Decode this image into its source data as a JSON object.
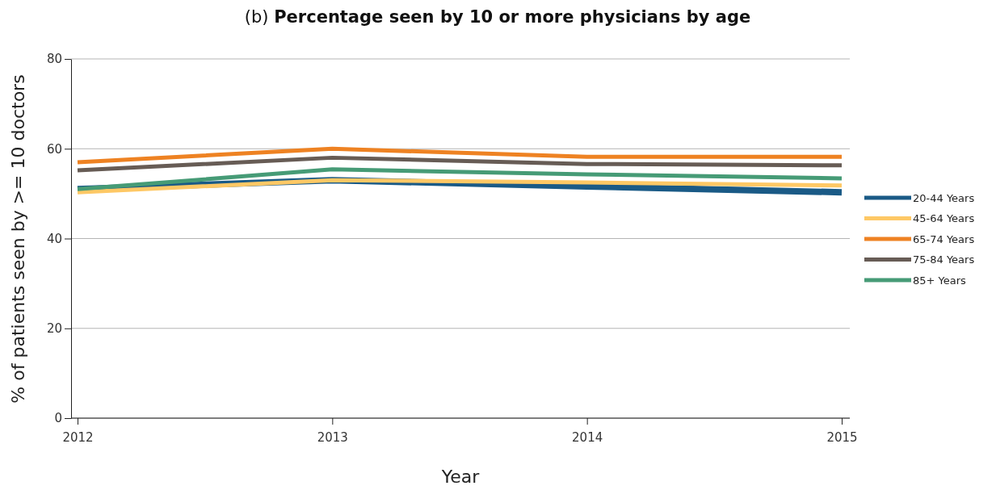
{
  "chart_data": {
    "type": "line",
    "title": "(b) Percentage seen by 10 or more physicians by age",
    "xlabel": "Year",
    "ylabel": "% of patients seen by >= 10 doctors",
    "categories": [
      "2012",
      "2013",
      "2014",
      "2015"
    ],
    "series": [
      {
        "name": "20-44 Years",
        "color": "#1a5a86",
        "values": [
          51,
          53,
          51.6,
          50.3
        ]
      },
      {
        "name": "45-64 Years",
        "color": "#fec865",
        "values": [
          50.3,
          53,
          52.5,
          51.8
        ]
      },
      {
        "name": "65-74 Years",
        "color": "#ee8222",
        "values": [
          57,
          60,
          58.2,
          58.2
        ]
      },
      {
        "name": "75-84 Years",
        "color": "#675c55",
        "values": [
          55.2,
          58,
          56.6,
          56.3
        ]
      },
      {
        "name": "85+ Years",
        "color": "#469b76",
        "values": [
          51,
          55.4,
          54.3,
          53.4
        ]
      }
    ],
    "ylim": [
      0,
      80
    ],
    "yticks": [
      0,
      20,
      40,
      60,
      80
    ],
    "grid": "y",
    "legend": "right",
    "line_style": "solid",
    "marker": "none"
  }
}
